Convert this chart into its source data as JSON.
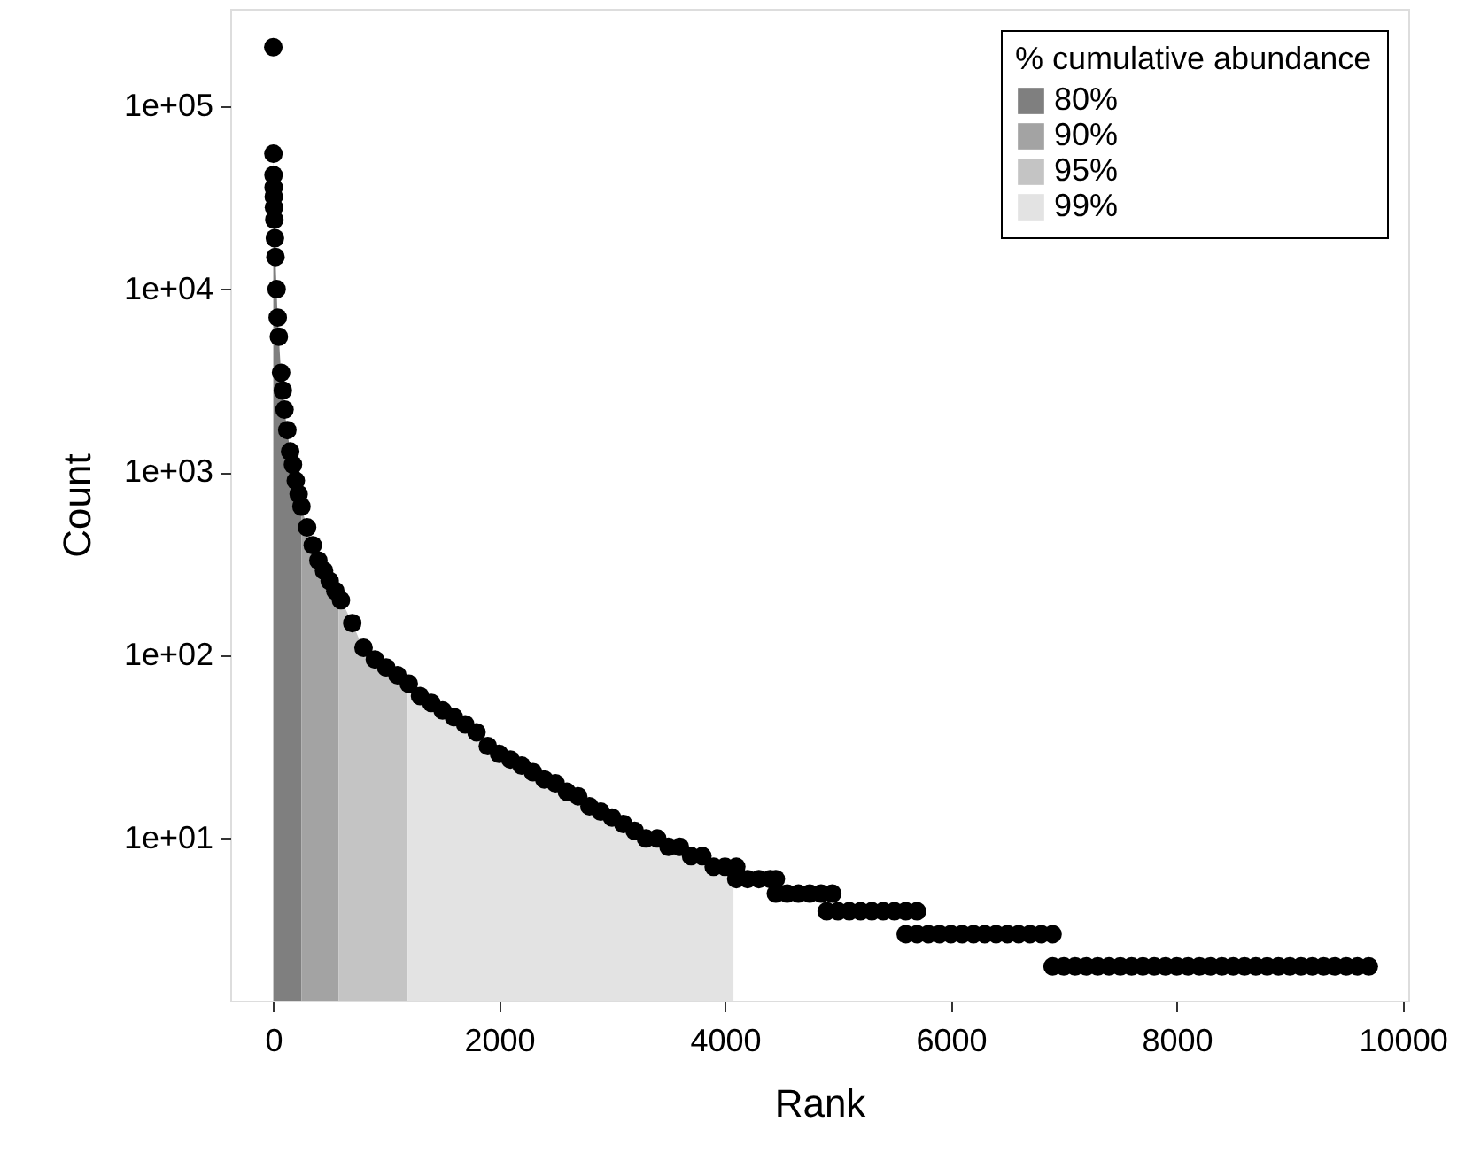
{
  "chart_data": {
    "type": "scatter",
    "xlabel": "Rank",
    "ylabel": "Count",
    "log": "y",
    "grid": false,
    "legend": "top right",
    "legend_title": "% cumulative abundance",
    "xlim": [
      -380,
      10050
    ],
    "ylim": [
      1.3,
      340000
    ],
    "xticks": [
      0,
      2000,
      4000,
      6000,
      8000,
      10000
    ],
    "yticks": [
      {
        "value": 10,
        "label": "1e+01"
      },
      {
        "value": 100,
        "label": "1e+02"
      },
      {
        "value": 1000,
        "label": "1e+03"
      },
      {
        "value": 10000,
        "label": "1e+04"
      },
      {
        "value": 100000,
        "label": "1e+05"
      }
    ],
    "series": [
      {
        "type": "area",
        "name": "80%",
        "color": "#7f7f7f",
        "x": [
          1,
          2,
          3,
          4,
          5,
          7,
          10,
          15,
          20,
          30,
          40,
          50,
          70,
          85,
          100,
          125,
          150,
          175,
          200,
          225,
          250
        ],
        "values": [
          210000,
          55000,
          42000,
          36000,
          32000,
          28000,
          24000,
          19000,
          15000,
          10000,
          7000,
          5500,
          3500,
          2800,
          2200,
          1700,
          1300,
          1100,
          900,
          760,
          650
        ]
      },
      {
        "type": "area",
        "name": "90%",
        "color": "#a3a3a3",
        "x": [
          250,
          300,
          350,
          400,
          450,
          500,
          550,
          580
        ],
        "values": [
          650,
          500,
          400,
          330,
          290,
          255,
          225,
          210
        ]
      },
      {
        "type": "area",
        "name": "95%",
        "color": "#c4c4c4",
        "x": [
          580,
          600,
          700,
          800,
          900,
          1000,
          1100,
          1190
        ],
        "values": [
          210,
          200,
          150,
          110,
          95,
          86,
          78,
          71
        ]
      },
      {
        "type": "area",
        "name": "99%",
        "color": "#e3e3e3",
        "x": [
          1190,
          1300,
          1400,
          1500,
          1600,
          1700,
          1800,
          1900,
          2000,
          2100,
          2200,
          2300,
          2400,
          2500,
          2600,
          2700,
          2800,
          2900,
          3000,
          3100,
          3200,
          3300,
          3400,
          3500,
          3600,
          3700,
          3800,
          3900,
          4000,
          4075
        ],
        "values": [
          71,
          60,
          55,
          50,
          46,
          42,
          38,
          32,
          29,
          27,
          25,
          23,
          21,
          20,
          18,
          17,
          15,
          14,
          13,
          12,
          11,
          10,
          10,
          9,
          9,
          8,
          8,
          7,
          7,
          7
        ]
      },
      {
        "color": "#000000",
        "marker": "circle",
        "x": [
          1,
          2,
          3,
          4,
          5,
          7,
          10,
          15,
          20,
          30,
          40,
          50,
          70,
          85,
          100,
          125,
          150,
          175,
          200,
          225,
          250,
          300,
          350,
          400,
          450,
          500,
          550,
          600,
          700,
          800,
          900,
          1000,
          1100,
          1200,
          1300,
          1400,
          1500,
          1600,
          1700,
          1800,
          1900,
          2000,
          2100,
          2200,
          2300,
          2400,
          2500,
          2600,
          2700,
          2800,
          2900,
          3000,
          3100,
          3200,
          3300,
          3400,
          3500,
          3600,
          3700,
          3800,
          3900,
          4000,
          4100,
          4100,
          4200,
          4300,
          4400,
          4450,
          4450,
          4550,
          4650,
          4750,
          4850,
          4950,
          4900,
          5000,
          5100,
          5200,
          5300,
          5400,
          5500,
          5600,
          5700,
          5600,
          5700,
          5800,
          5900,
          6000,
          6100,
          6200,
          6300,
          6400,
          6500,
          6600,
          6700,
          6800,
          6900,
          6900,
          7000,
          7100,
          7200,
          7300,
          7400,
          7500,
          7600,
          7700,
          7800,
          7900,
          8000,
          8100,
          8200,
          8300,
          8400,
          8500,
          8600,
          8700,
          8800,
          8900,
          9000,
          9100,
          9200,
          9300,
          9400,
          9500,
          9600,
          9700
        ],
        "values": [
          210000,
          55000,
          42000,
          36000,
          32000,
          28000,
          24000,
          19000,
          15000,
          10000,
          7000,
          5500,
          3500,
          2800,
          2200,
          1700,
          1300,
          1100,
          900,
          760,
          650,
          500,
          400,
          330,
          290,
          255,
          225,
          200,
          150,
          110,
          95,
          86,
          78,
          70,
          60,
          55,
          50,
          46,
          42,
          38,
          32,
          29,
          27,
          25,
          23,
          21,
          20,
          18,
          17,
          15,
          14,
          13,
          12,
          11,
          10,
          10,
          9,
          9,
          8,
          8,
          7,
          7,
          7,
          6,
          6,
          6,
          6,
          6,
          5,
          5,
          5,
          5,
          5,
          5,
          4,
          4,
          4,
          4,
          4,
          4,
          4,
          4,
          4,
          3,
          3,
          3,
          3,
          3,
          3,
          3,
          3,
          3,
          3,
          3,
          3,
          3,
          3,
          2,
          2,
          2,
          2,
          2,
          2,
          2,
          2,
          2,
          2,
          2,
          2,
          2,
          2,
          2,
          2,
          2,
          2,
          2,
          2,
          2,
          2,
          2,
          2,
          2,
          2,
          2,
          2,
          2
        ]
      }
    ]
  }
}
